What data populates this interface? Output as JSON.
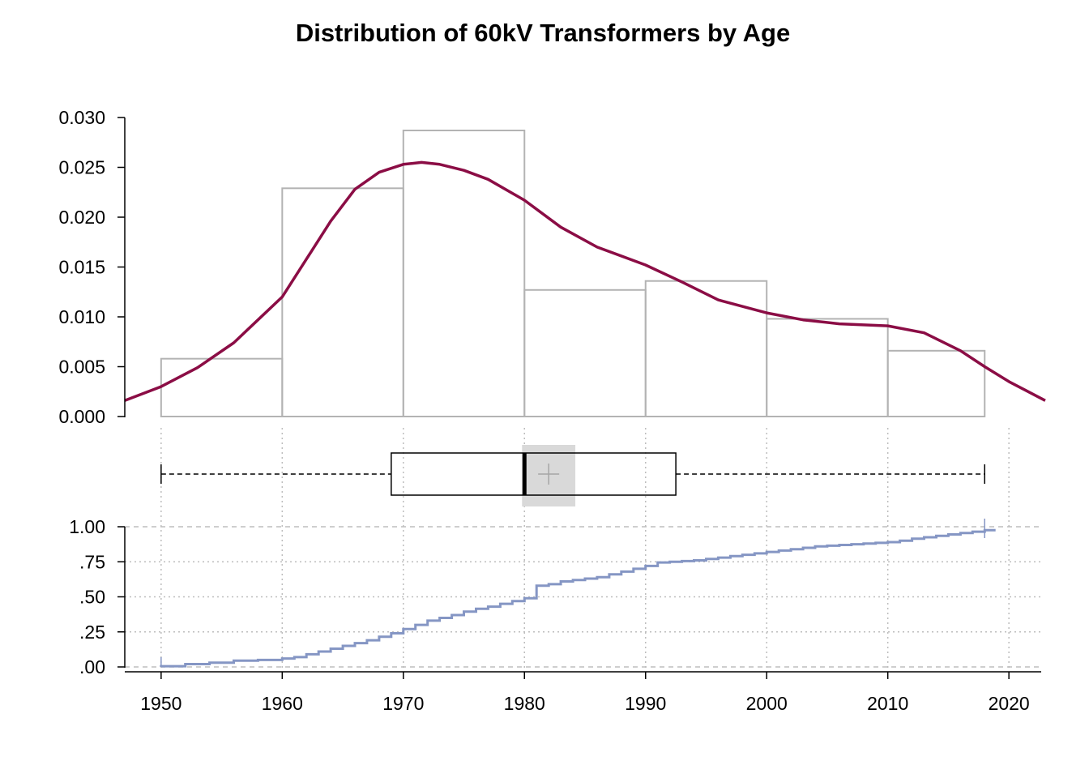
{
  "chart_data": {
    "title": "Distribution of 60kV Transformers by Age",
    "type": "histogram+density+boxplot+ecdf",
    "colors": {
      "histogram_outline": "#b3b3b3",
      "density_line": "#8b0d45",
      "ecdf_line": "#8596c4",
      "grid": "#bdbdbd",
      "box_mean_band": "#d9d9d9",
      "axis": "#000000"
    },
    "x_axis": {
      "range": [
        1947,
        2023
      ],
      "ticks": [
        1950,
        1960,
        1970,
        1980,
        1990,
        2000,
        2010,
        2020
      ],
      "tick_labels": [
        "1950",
        "1960",
        "1970",
        "1980",
        "1990",
        "2000",
        "2010",
        "2020"
      ]
    },
    "histogram": {
      "y_range": [
        0,
        0.03
      ],
      "y_ticks": [
        0,
        0.005,
        0.01,
        0.015,
        0.02,
        0.025,
        0.03
      ],
      "y_tick_labels": [
        "0.000",
        "0.005",
        "0.010",
        "0.015",
        "0.020",
        "0.025",
        "0.030"
      ],
      "bins": [
        {
          "start": 1950,
          "end": 1960,
          "density": 0.0058
        },
        {
          "start": 1960,
          "end": 1970,
          "density": 0.0229
        },
        {
          "start": 1970,
          "end": 1980,
          "density": 0.0287
        },
        {
          "start": 1980,
          "end": 1990,
          "density": 0.0127
        },
        {
          "start": 1990,
          "end": 2000,
          "density": 0.0136
        },
        {
          "start": 2000,
          "end": 2010,
          "density": 0.0098
        },
        {
          "start": 2010,
          "end": 2018,
          "density": 0.0066
        }
      ]
    },
    "density": {
      "x": [
        1947,
        1950,
        1953,
        1956,
        1958,
        1960,
        1962,
        1964,
        1966,
        1968,
        1970,
        1971.5,
        1973,
        1975,
        1977,
        1980,
        1983,
        1986,
        1990,
        1993,
        1996,
        2000,
        2003,
        2006,
        2010,
        2013,
        2016,
        2018,
        2020,
        2023
      ],
      "y": [
        0.0016,
        0.003,
        0.0049,
        0.0074,
        0.0097,
        0.012,
        0.0158,
        0.0196,
        0.0228,
        0.0245,
        0.0253,
        0.0255,
        0.0253,
        0.0247,
        0.0238,
        0.0217,
        0.019,
        0.017,
        0.0152,
        0.0135,
        0.0117,
        0.0104,
        0.0097,
        0.0093,
        0.0091,
        0.0084,
        0.0066,
        0.005,
        0.0035,
        0.0016
      ]
    },
    "boxplot": {
      "whisker_low": 1950,
      "q1": 1969,
      "median": 1980,
      "q3": 1992.5,
      "whisker_high": 2018,
      "mean": 1982,
      "mean_ci": [
        1980,
        1984
      ]
    },
    "ecdf": {
      "y_range": [
        0,
        1
      ],
      "y_ticks": [
        0,
        0.25,
        0.5,
        0.75,
        1
      ],
      "y_tick_labels": [
        ".00",
        ".25",
        ".50",
        ".75",
        "1.00"
      ],
      "x": [
        1950,
        1952,
        1954,
        1956,
        1958,
        1960,
        1961,
        1962,
        1963,
        1964,
        1965,
        1966,
        1967,
        1968,
        1969,
        1970,
        1971,
        1972,
        1973,
        1974,
        1975,
        1976,
        1977,
        1978,
        1979,
        1980,
        1981,
        1982,
        1983,
        1984,
        1985,
        1986,
        1987,
        1988,
        1989,
        1990,
        1991,
        1992,
        1993,
        1994,
        1995,
        1996,
        1997,
        1998,
        1999,
        2000,
        2001,
        2002,
        2003,
        2004,
        2005,
        2006,
        2007,
        2008,
        2009,
        2010,
        2011,
        2012,
        2013,
        2014,
        2015,
        2016,
        2017,
        2018
      ],
      "y": [
        0.005,
        0.02,
        0.03,
        0.045,
        0.05,
        0.06,
        0.07,
        0.09,
        0.11,
        0.13,
        0.15,
        0.17,
        0.19,
        0.215,
        0.24,
        0.27,
        0.3,
        0.33,
        0.35,
        0.37,
        0.395,
        0.415,
        0.43,
        0.45,
        0.47,
        0.49,
        0.58,
        0.59,
        0.61,
        0.62,
        0.63,
        0.64,
        0.66,
        0.68,
        0.7,
        0.72,
        0.745,
        0.75,
        0.755,
        0.76,
        0.77,
        0.78,
        0.79,
        0.8,
        0.81,
        0.82,
        0.83,
        0.84,
        0.85,
        0.86,
        0.865,
        0.87,
        0.875,
        0.88,
        0.885,
        0.89,
        0.9,
        0.915,
        0.925,
        0.935,
        0.945,
        0.955,
        0.965,
        0.975
      ]
    }
  }
}
